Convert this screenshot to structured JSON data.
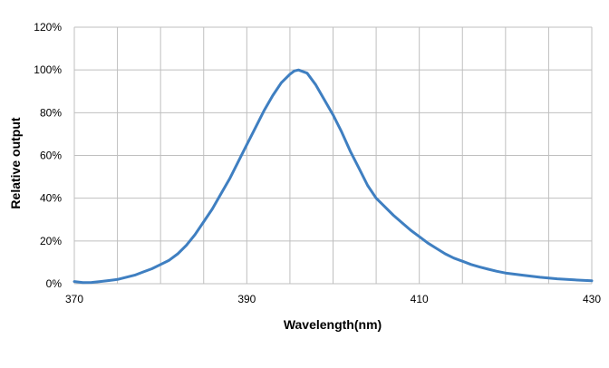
{
  "chart_data": {
    "type": "line",
    "title": "",
    "xlabel": "Wavelength(nm)",
    "ylabel": "Relative output",
    "xlim": [
      370,
      430
    ],
    "ylim": [
      0,
      120
    ],
    "x_ticks": [
      370,
      390,
      410,
      430
    ],
    "x_tick_labels": [
      "370",
      "390",
      "410",
      "430"
    ],
    "x_gridlines": [
      370,
      375,
      380,
      385,
      390,
      395,
      400,
      405,
      410,
      415,
      420,
      425,
      430
    ],
    "y_ticks": [
      0,
      20,
      40,
      60,
      80,
      100,
      120
    ],
    "y_tick_labels": [
      "0%",
      "20%",
      "40%",
      "60%",
      "80%",
      "100%",
      "120%"
    ],
    "grid": true,
    "legend": "none",
    "line_color": "#3F7FC1",
    "grid_color": "#BFBFBF",
    "series": [
      {
        "x": [
          370,
          371,
          372,
          373,
          374,
          375,
          376,
          377,
          378,
          379,
          380,
          381,
          382,
          383,
          384,
          385,
          386,
          387,
          388,
          389,
          390,
          391,
          392,
          393,
          394,
          395,
          395.5,
          396,
          397,
          398,
          399,
          400,
          401,
          402,
          403,
          404,
          405,
          406,
          407,
          408,
          409,
          410,
          411,
          412,
          413,
          414,
          415,
          416,
          417,
          418,
          419,
          420,
          422,
          424,
          426,
          428,
          430
        ],
        "y": [
          1,
          0.5,
          0.6,
          1,
          1.5,
          2,
          3,
          4,
          5.5,
          7,
          9,
          11,
          14,
          18,
          23,
          29,
          35,
          42,
          49,
          57,
          65,
          73,
          81,
          88,
          94,
          98,
          99.5,
          100,
          98.5,
          93,
          86,
          79,
          71,
          62,
          54,
          46,
          40,
          36,
          32,
          28.5,
          25,
          22,
          19,
          16.5,
          14,
          12,
          10.5,
          9,
          7.8,
          6.8,
          5.8,
          5,
          4,
          3,
          2.3,
          1.8,
          1.4
        ]
      }
    ]
  }
}
